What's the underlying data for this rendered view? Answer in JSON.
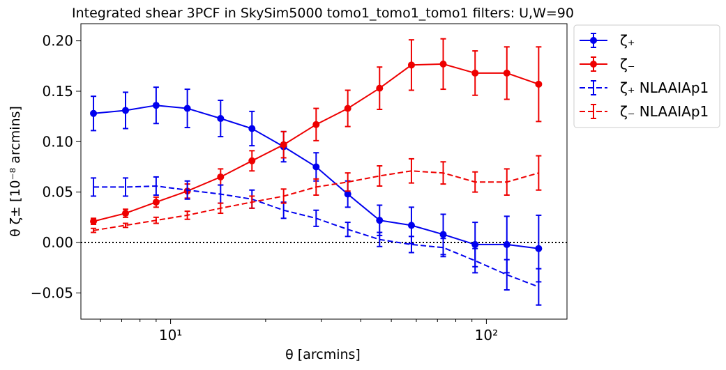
{
  "chart_data": {
    "type": "line",
    "title": "Integrated shear 3PCF in SkySim5000 tomo1_tomo1_tomo1 filters: U,W=90",
    "xlabel": "θ [arcmins]",
    "ylabel": "θ ζ± [10⁻⁸ arcmins]",
    "xscale": "log",
    "xlim": [
      5.2,
      180
    ],
    "ylim": [
      -0.076,
      0.217
    ],
    "x_ticks": [
      {
        "value": 10,
        "label": "10¹"
      },
      {
        "value": 100,
        "label": "10²"
      }
    ],
    "y_ticks": [
      {
        "value": -0.05,
        "label": "−0.05"
      },
      {
        "value": 0.0,
        "label": "0.00"
      },
      {
        "value": 0.05,
        "label": "0.05"
      },
      {
        "value": 0.1,
        "label": "0.10"
      },
      {
        "value": 0.15,
        "label": "0.15"
      },
      {
        "value": 0.2,
        "label": "0.20"
      }
    ],
    "reference_line": {
      "y": 0.0,
      "style": "dotted",
      "color": "#000000"
    },
    "legend_position": "outside-upper-right",
    "x": [
      5.7,
      7.2,
      9.0,
      11.3,
      14.4,
      18.1,
      22.8,
      28.9,
      36.4,
      45.9,
      57.9,
      73.0,
      92.1,
      116.1,
      146.4
    ],
    "series": [
      {
        "name": "ζ₊",
        "color": "#0000ee",
        "linestyle": "solid",
        "marker": "circle",
        "values": [
          0.128,
          0.131,
          0.136,
          0.133,
          0.123,
          0.113,
          0.095,
          0.075,
          0.048,
          0.022,
          0.017,
          0.008,
          -0.002,
          -0.002,
          -0.006
        ],
        "errors": [
          0.017,
          0.018,
          0.018,
          0.019,
          0.018,
          0.017,
          0.015,
          0.014,
          0.013,
          0.015,
          0.018,
          0.02,
          0.022,
          0.028,
          0.033
        ]
      },
      {
        "name": "ζ₋",
        "color": "#ee0000",
        "linestyle": "solid",
        "marker": "circle",
        "values": [
          0.021,
          0.029,
          0.04,
          0.051,
          0.065,
          0.081,
          0.097,
          0.117,
          0.133,
          0.153,
          0.176,
          0.177,
          0.168,
          0.168,
          0.157
        ],
        "errors": [
          0.003,
          0.004,
          0.005,
          0.007,
          0.008,
          0.01,
          0.013,
          0.016,
          0.018,
          0.021,
          0.025,
          0.025,
          0.022,
          0.026,
          0.037
        ]
      },
      {
        "name": "ζ₊ NLAAIAp1",
        "color": "#0000ee",
        "linestyle": "dashed",
        "marker": "none",
        "values": [
          0.055,
          0.055,
          0.056,
          0.052,
          0.048,
          0.043,
          0.032,
          0.024,
          0.013,
          0.003,
          -0.002,
          -0.005,
          -0.018,
          -0.032,
          -0.044
        ],
        "errors": [
          0.009,
          0.009,
          0.009,
          0.009,
          0.009,
          0.009,
          0.008,
          0.008,
          0.007,
          0.007,
          0.008,
          0.009,
          0.012,
          0.015,
          0.018
        ]
      },
      {
        "name": "ζ₋ NLAAIAp1",
        "color": "#ee0000",
        "linestyle": "dashed",
        "marker": "none",
        "values": [
          0.012,
          0.017,
          0.022,
          0.027,
          0.034,
          0.04,
          0.046,
          0.055,
          0.06,
          0.066,
          0.071,
          0.069,
          0.06,
          0.06,
          0.069
        ],
        "errors": [
          0.002,
          0.002,
          0.003,
          0.004,
          0.005,
          0.006,
          0.007,
          0.008,
          0.009,
          0.01,
          0.012,
          0.011,
          0.01,
          0.013,
          0.017
        ]
      }
    ]
  }
}
